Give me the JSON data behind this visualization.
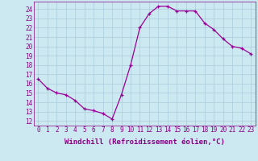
{
  "x": [
    0,
    1,
    2,
    3,
    4,
    5,
    6,
    7,
    8,
    9,
    10,
    11,
    12,
    13,
    14,
    15,
    16,
    17,
    18,
    19,
    20,
    21,
    22,
    23
  ],
  "y": [
    16.5,
    15.5,
    15.0,
    14.8,
    14.2,
    13.3,
    13.1,
    12.8,
    12.2,
    14.8,
    18.0,
    22.0,
    23.5,
    24.3,
    24.3,
    23.8,
    23.8,
    23.8,
    22.5,
    21.8,
    20.8,
    20.0,
    19.8,
    19.2
  ],
  "line_color": "#990099",
  "marker": "+",
  "marker_color": "#990099",
  "bg_color": "#cce8f0",
  "grid_color": "#aaccdd",
  "xlabel": "Windchill (Refroidissement éolien,°C)",
  "xlim": [
    -0.5,
    23.5
  ],
  "ylim": [
    11.5,
    24.8
  ],
  "yticks": [
    12,
    13,
    14,
    15,
    16,
    17,
    18,
    19,
    20,
    21,
    22,
    23,
    24
  ],
  "xticks": [
    0,
    1,
    2,
    3,
    4,
    5,
    6,
    7,
    8,
    9,
    10,
    11,
    12,
    13,
    14,
    15,
    16,
    17,
    18,
    19,
    20,
    21,
    22,
    23
  ],
  "xtick_labels": [
    "0",
    "1",
    "2",
    "3",
    "4",
    "5",
    "6",
    "7",
    "8",
    "9",
    "10",
    "11",
    "12",
    "13",
    "14",
    "15",
    "16",
    "17",
    "18",
    "19",
    "20",
    "21",
    "22",
    "23"
  ],
  "tick_color": "#880088",
  "label_color": "#880088",
  "font": "monospace",
  "font_size": 5.5,
  "xlabel_fontsize": 6.5
}
